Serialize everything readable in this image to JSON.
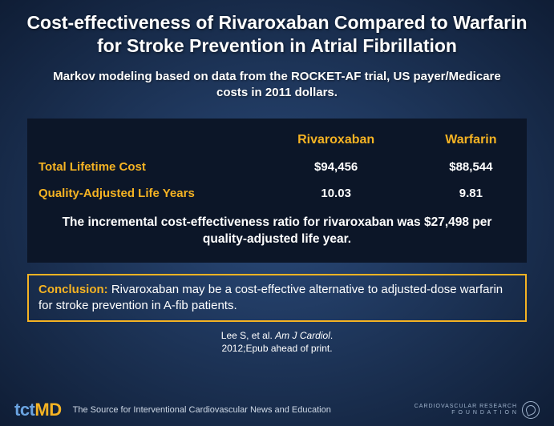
{
  "title": "Cost-effectiveness of Rivaroxaban   Compared to Warfarin for Stroke Prevention in Atrial Fibrillation",
  "subtitle": "Markov modeling based on data from the ROCKET-AF trial, US payer/Medicare costs in 2011 dollars.",
  "table": {
    "col1_header": "Rivaroxaban",
    "col2_header": "Warfarin",
    "rows": [
      {
        "label": "Total Lifetime Cost",
        "col1": "$94,456",
        "col2": "$88,544"
      },
      {
        "label": "Quality-Adjusted Life Years",
        "col1": "10.03",
        "col2": "9.81"
      }
    ],
    "incremental": "The incremental cost-effectiveness ratio for rivaroxaban was $27,498 per quality-adjusted life year."
  },
  "conclusion": {
    "label": "Conclusion:",
    "text": " Rivaroxaban may be a cost-effective alternative to adjusted-dose warfarin for stroke prevention in A-fib patients."
  },
  "citation": {
    "line1_pre": "Lee S, et al. ",
    "line1_ital": "Am J Cardiol",
    "line1_post": ".",
    "line2": "2012;Epub ahead of print."
  },
  "footer": {
    "logo_tct": "tct",
    "logo_md": "MD",
    "tagline": "The Source for Interventional Cardiovascular News and Education",
    "crf_line1": "CARDIOVASCULAR RESEARCH",
    "crf_line2": "F O U N D A T I O N"
  },
  "colors": {
    "accent": "#f5b323",
    "table_bg": "#0c1628",
    "bg_inner": "#2a4a7a",
    "bg_outer": "#0f1d35",
    "text": "#ffffff"
  }
}
